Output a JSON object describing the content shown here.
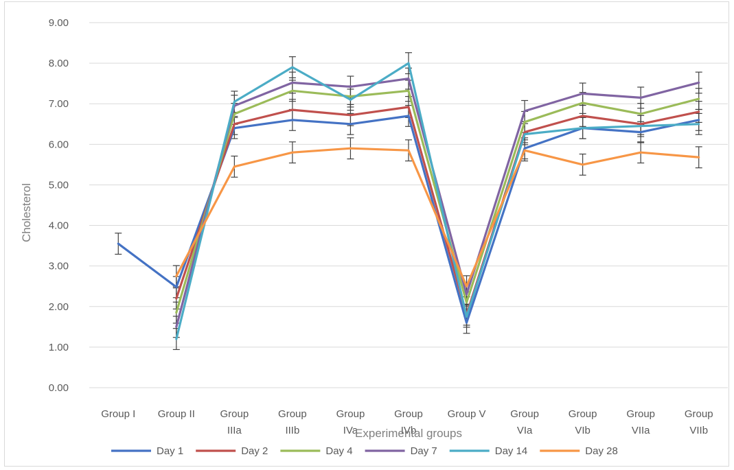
{
  "chart_data": {
    "type": "line",
    "title": "",
    "xlabel": "Experimental groups",
    "ylabel": "Cholesterol",
    "ylim": [
      0,
      9
    ],
    "yticks": [
      "0.00",
      "1.00",
      "2.00",
      "3.00",
      "4.00",
      "5.00",
      "6.00",
      "7.00",
      "8.00",
      "9.00"
    ],
    "grid": true,
    "legend_position": "bottom",
    "categories": [
      [
        "Group I"
      ],
      [
        "Group II"
      ],
      [
        "Group",
        "IIIa"
      ],
      [
        "Group",
        "IIIb"
      ],
      [
        "Group",
        "IVa"
      ],
      [
        "Group",
        "IVb"
      ],
      [
        "Group V"
      ],
      [
        "Group",
        "VIa"
      ],
      [
        "Group",
        "VIb"
      ],
      [
        "Group",
        "VIIa"
      ],
      [
        "Group",
        "VIIb"
      ]
    ],
    "series": [
      {
        "name": "Day 1",
        "color": "#4472c4",
        "values": [
          3.55,
          2.48,
          6.4,
          6.6,
          6.5,
          6.7,
          1.6,
          5.9,
          6.4,
          6.3,
          6.6
        ]
      },
      {
        "name": "Day 2",
        "color": "#c0504d",
        "values": [
          null,
          2.2,
          6.5,
          6.85,
          6.72,
          6.92,
          1.8,
          6.3,
          6.7,
          6.5,
          6.8
        ]
      },
      {
        "name": "Day 4",
        "color": "#9bbb59",
        "values": [
          null,
          1.85,
          6.75,
          7.32,
          7.18,
          7.32,
          2.1,
          6.55,
          7.02,
          6.75,
          7.12
        ]
      },
      {
        "name": "Day 7",
        "color": "#8064a2",
        "values": [
          null,
          1.5,
          6.95,
          7.52,
          7.42,
          7.62,
          2.3,
          6.82,
          7.25,
          7.15,
          7.52
        ]
      },
      {
        "name": "Day 14",
        "color": "#4bacc6",
        "values": [
          null,
          1.2,
          7.05,
          7.9,
          7.1,
          8.0,
          1.75,
          6.25,
          6.4,
          6.45,
          6.5
        ]
      },
      {
        "name": "Day 28",
        "color": "#f79646",
        "values": [
          null,
          2.75,
          5.45,
          5.8,
          5.9,
          5.85,
          2.5,
          5.85,
          5.5,
          5.8,
          5.68
        ]
      }
    ]
  }
}
